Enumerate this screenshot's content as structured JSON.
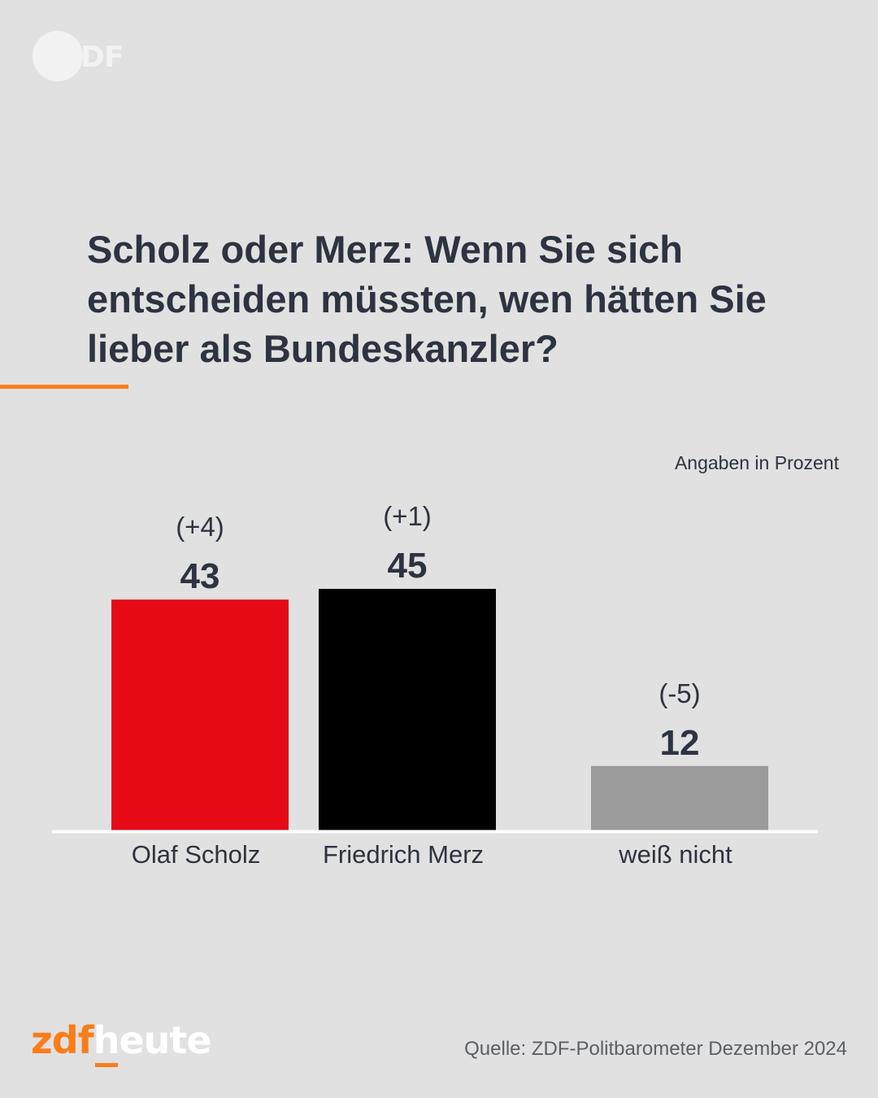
{
  "branding": {
    "top_logo_text": "ZDF",
    "footer_logo_part1": "zdf",
    "footer_logo_part2": "heute"
  },
  "headline": "Scholz oder Merz: Wenn Sie sich entscheiden müssten, wen hätten Sie lieber als Bundeskanzler?",
  "unit_label": "Angaben in Prozent",
  "source": "Quelle: ZDF-Politbarometer Dezember 2024",
  "colors": {
    "accent": "#fa7d19",
    "background": "#e1e1e1",
    "text": "#2d3340"
  },
  "chart_data": {
    "type": "bar",
    "categories": [
      "Olaf Scholz",
      "Friedrich Merz",
      "weiß nicht"
    ],
    "values": [
      43,
      45,
      12
    ],
    "changes": [
      "(+4)",
      "(+1)",
      "(-5)"
    ],
    "colors": [
      "#e60a17",
      "#000000",
      "#9b9b9b"
    ],
    "grid": false
  }
}
